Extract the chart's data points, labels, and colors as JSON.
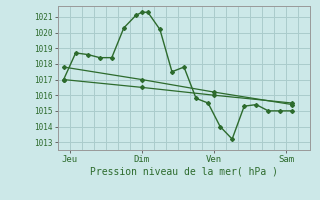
{
  "title": "Pression niveau de la mer( hPa )",
  "background_color": "#cce8e8",
  "grid_color": "#aacccc",
  "line_color": "#2d6b2d",
  "yticks": [
    1013,
    1014,
    1015,
    1016,
    1017,
    1018,
    1019,
    1020,
    1021
  ],
  "ylim": [
    1012.5,
    1021.7
  ],
  "xtick_labels": [
    "Jeu",
    "Dim",
    "Ven",
    "Sam"
  ],
  "xtick_positions": [
    1,
    7,
    13,
    19
  ],
  "xlim": [
    0,
    21
  ],
  "num_vlines": 21,
  "series1_x": [
    0.5,
    1.5,
    2.5,
    3.5,
    4.5,
    5.5,
    6.5,
    7.0,
    7.5,
    8.5,
    9.5,
    10.5,
    11.5,
    12.5,
    13.5,
    14.5,
    15.5,
    16.5,
    17.5,
    18.5,
    19.5
  ],
  "series1_y": [
    1017.0,
    1018.7,
    1018.6,
    1018.4,
    1018.4,
    1020.3,
    1021.1,
    1021.3,
    1021.3,
    1020.2,
    1017.5,
    1017.8,
    1015.8,
    1015.5,
    1014.0,
    1013.2,
    1015.3,
    1015.4,
    1015.0,
    1015.0,
    1015.0
  ],
  "series2_x": [
    0.5,
    7.0,
    13.0,
    19.5
  ],
  "series2_y": [
    1017.8,
    1017.0,
    1016.2,
    1015.4
  ],
  "series3_x": [
    0.5,
    7.0,
    13.0,
    19.5
  ],
  "series3_y": [
    1017.0,
    1016.5,
    1016.0,
    1015.5
  ],
  "ylabel_fontsize": 5.5,
  "xlabel_fontsize": 7.0,
  "xtick_fontsize": 6.5
}
